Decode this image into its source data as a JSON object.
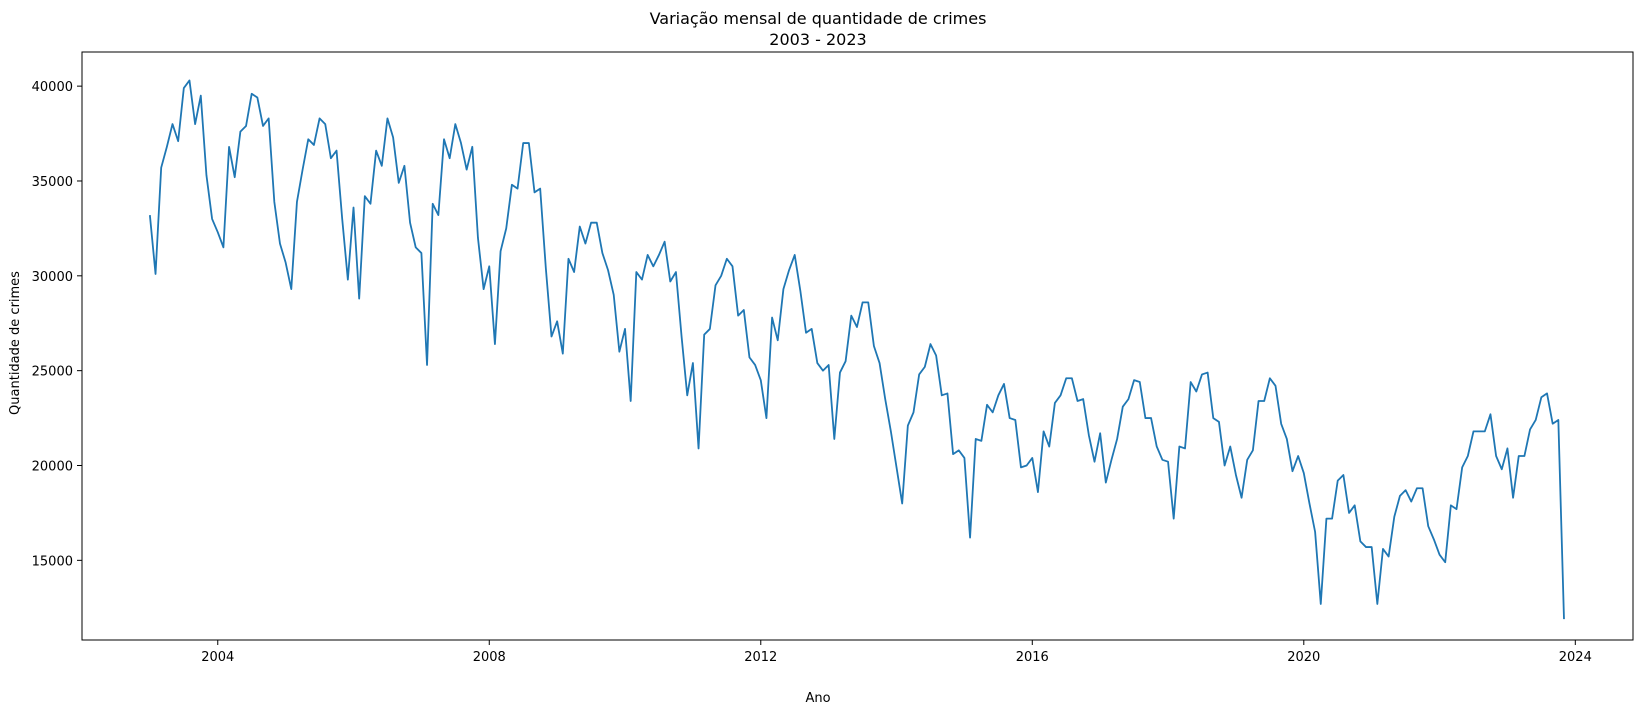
{
  "chart_data": {
    "type": "line",
    "title": "Variação mensal de quantidade de crimes",
    "subtitle": "2003 - 2023",
    "xlabel": "Ano",
    "ylabel": "Quantidade de crimes",
    "xlim": [
      2002.0,
      2024.85
    ],
    "ylim": [
      10800,
      41800
    ],
    "x_ticks": [
      2004,
      2008,
      2012,
      2016,
      2020,
      2024
    ],
    "x_tick_labels": [
      "2004",
      "2008",
      "2012",
      "2016",
      "2020",
      "2024"
    ],
    "y_ticks": [
      15000,
      20000,
      25000,
      30000,
      35000,
      40000
    ],
    "y_tick_labels": [
      "15000",
      "20000",
      "25000",
      "30000",
      "35000",
      "40000"
    ],
    "grid": false,
    "legend": "none",
    "colors": {
      "line": "#1f77b4",
      "axes": "#000000",
      "background": "#ffffff"
    },
    "series": [
      {
        "start_year": 2003,
        "start_month": 1,
        "values": [
          33200,
          30100,
          35700,
          36800,
          38000,
          37100,
          39900,
          40300,
          38000,
          39500,
          35300,
          33000,
          32300,
          31500,
          36800,
          35200,
          37600,
          37900,
          39600,
          39400,
          37900,
          38300,
          33900,
          31700,
          30700,
          29300,
          33900,
          35600,
          37200,
          36900,
          38300,
          38000,
          36200,
          36600,
          33000,
          29800,
          33600,
          28800,
          34200,
          33800,
          36600,
          35800,
          38300,
          37300,
          34900,
          35800,
          32800,
          31500,
          31200,
          25300,
          33800,
          33200,
          37200,
          36200,
          38000,
          37000,
          35600,
          36800,
          32000,
          29300,
          30500,
          26400,
          31300,
          32500,
          34800,
          34600,
          37000,
          37000,
          34400,
          34600,
          30400,
          26800,
          27600,
          25900,
          30900,
          30200,
          32600,
          31700,
          32800,
          32800,
          31200,
          30300,
          29000,
          26000,
          27200,
          23400,
          30200,
          29800,
          31100,
          30500,
          31100,
          31800,
          29700,
          30200,
          26800,
          23700,
          25400,
          20900,
          26900,
          27200,
          29500,
          30000,
          30900,
          30500,
          27900,
          28200,
          25700,
          25300,
          24500,
          22500,
          27800,
          26600,
          29300,
          30300,
          31100,
          29200,
          27000,
          27200,
          25400,
          25000,
          25300,
          21400,
          24900,
          25500,
          27900,
          27300,
          28600,
          28600,
          26300,
          25400,
          23500,
          21800,
          19900,
          18000,
          22100,
          22800,
          24800,
          25200,
          26400,
          25800,
          23700,
          23800,
          20600,
          20800,
          20400,
          16200,
          21400,
          21300,
          23200,
          22800,
          23700,
          24300,
          22500,
          22400,
          19900,
          20000,
          20400,
          18600,
          21800,
          21000,
          23300,
          23700,
          24600,
          24600,
          23400,
          23500,
          21600,
          20200,
          21700,
          19100,
          20300,
          21400,
          23100,
          23500,
          24500,
          24400,
          22500,
          22500,
          21000,
          20300,
          20200,
          17200,
          21000,
          20900,
          24400,
          23900,
          24800,
          24900,
          22500,
          22300,
          20000,
          21000,
          19500,
          18300,
          20300,
          20800,
          23400,
          23400,
          24600,
          24200,
          22200,
          21400,
          19700,
          20500,
          19600,
          18000,
          16500,
          12700,
          17200,
          17200,
          19200,
          19500,
          17500,
          17900,
          16000,
          15700,
          15700,
          12700,
          15600,
          15200,
          17300,
          18400,
          18700,
          18100,
          18800,
          18800,
          16800,
          16100,
          15300,
          14900,
          17900,
          17700,
          19900,
          20500,
          21800,
          21800,
          21800,
          22700,
          20500,
          19800,
          20900,
          18300,
          20500,
          20500,
          21900,
          22400,
          23600,
          23800,
          22200,
          22400,
          11900
        ]
      }
    ]
  }
}
